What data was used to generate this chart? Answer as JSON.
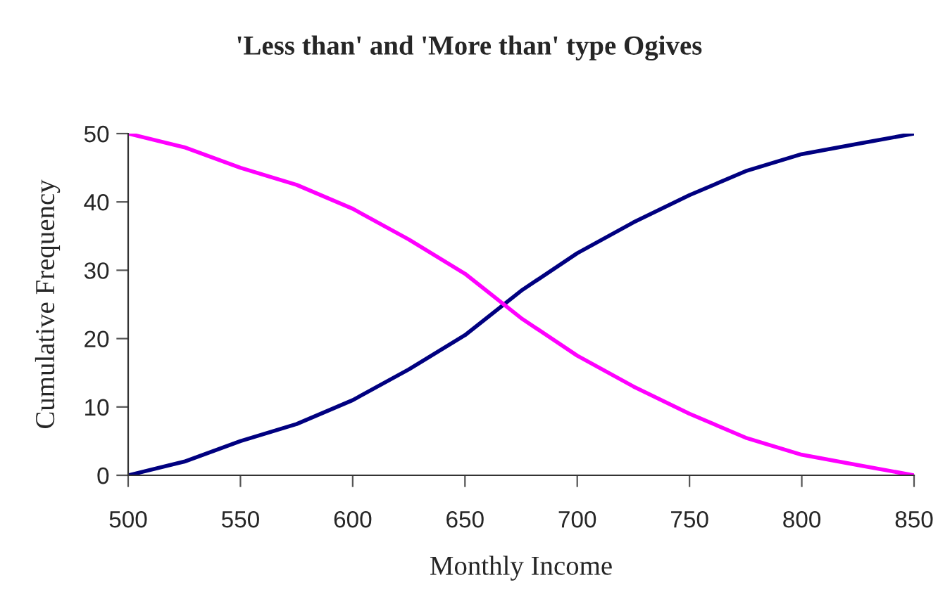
{
  "chart_data": {
    "type": "line",
    "title": "'Less than' and 'More than' type Ogives",
    "xlabel": "Monthly Income",
    "ylabel": "Cumulative Frequency",
    "x": [
      500,
      525,
      550,
      575,
      600,
      625,
      650,
      675,
      700,
      725,
      750,
      775,
      800,
      825,
      850
    ],
    "series": [
      {
        "color": "#000080",
        "values": [
          0,
          2,
          5,
          7.5,
          11,
          15.5,
          20.5,
          27,
          32.5,
          37,
          41,
          44.5,
          47,
          48.5,
          50
        ]
      },
      {
        "color": "#ff00ff",
        "values": [
          50,
          48,
          45,
          42.5,
          39,
          34.5,
          29.5,
          23,
          17.5,
          13,
          9,
          5.5,
          3,
          1.5,
          0
        ]
      }
    ],
    "xlim": [
      500,
      850
    ],
    "xticks": [
      500,
      550,
      600,
      650,
      700,
      750,
      800,
      850
    ],
    "ylim": [
      0,
      50
    ],
    "yticks": [
      0,
      10,
      20,
      30,
      40,
      50
    ],
    "grid": false,
    "legend": false,
    "marker": "none",
    "line_style": "solid"
  }
}
